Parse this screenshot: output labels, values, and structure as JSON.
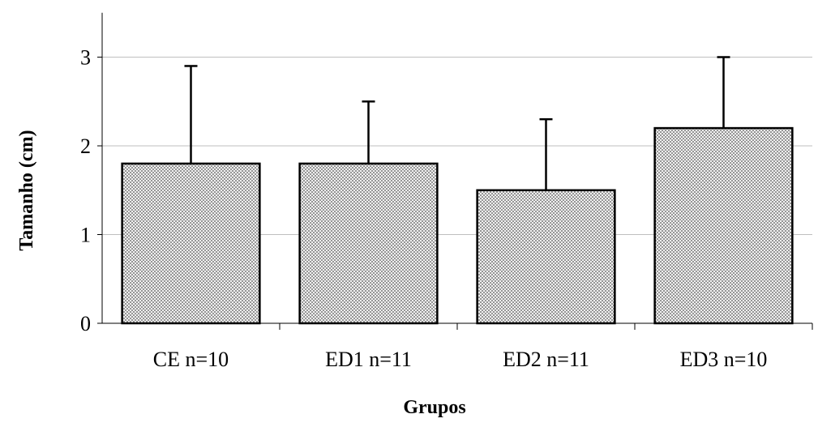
{
  "chart_data": {
    "type": "bar",
    "title": "",
    "xlabel": "Grupos",
    "ylabel": "Tamanho (cm)",
    "categories": [
      "CE n=10",
      "ED1 n=11",
      "ED2 n=11",
      "ED3 n=10"
    ],
    "series": [
      {
        "values": [
          1.8,
          1.8,
          1.5,
          2.2
        ],
        "error_upper": [
          1.1,
          0.7,
          0.8,
          0.8
        ]
      }
    ],
    "yticks": [
      "0",
      "1",
      "2",
      "3"
    ],
    "ylim": [
      0,
      3.5
    ],
    "grid": true,
    "bar_fill": "#d9d9d9",
    "bar_stroke": "#000000",
    "grid_color": "#bfbfbf"
  }
}
